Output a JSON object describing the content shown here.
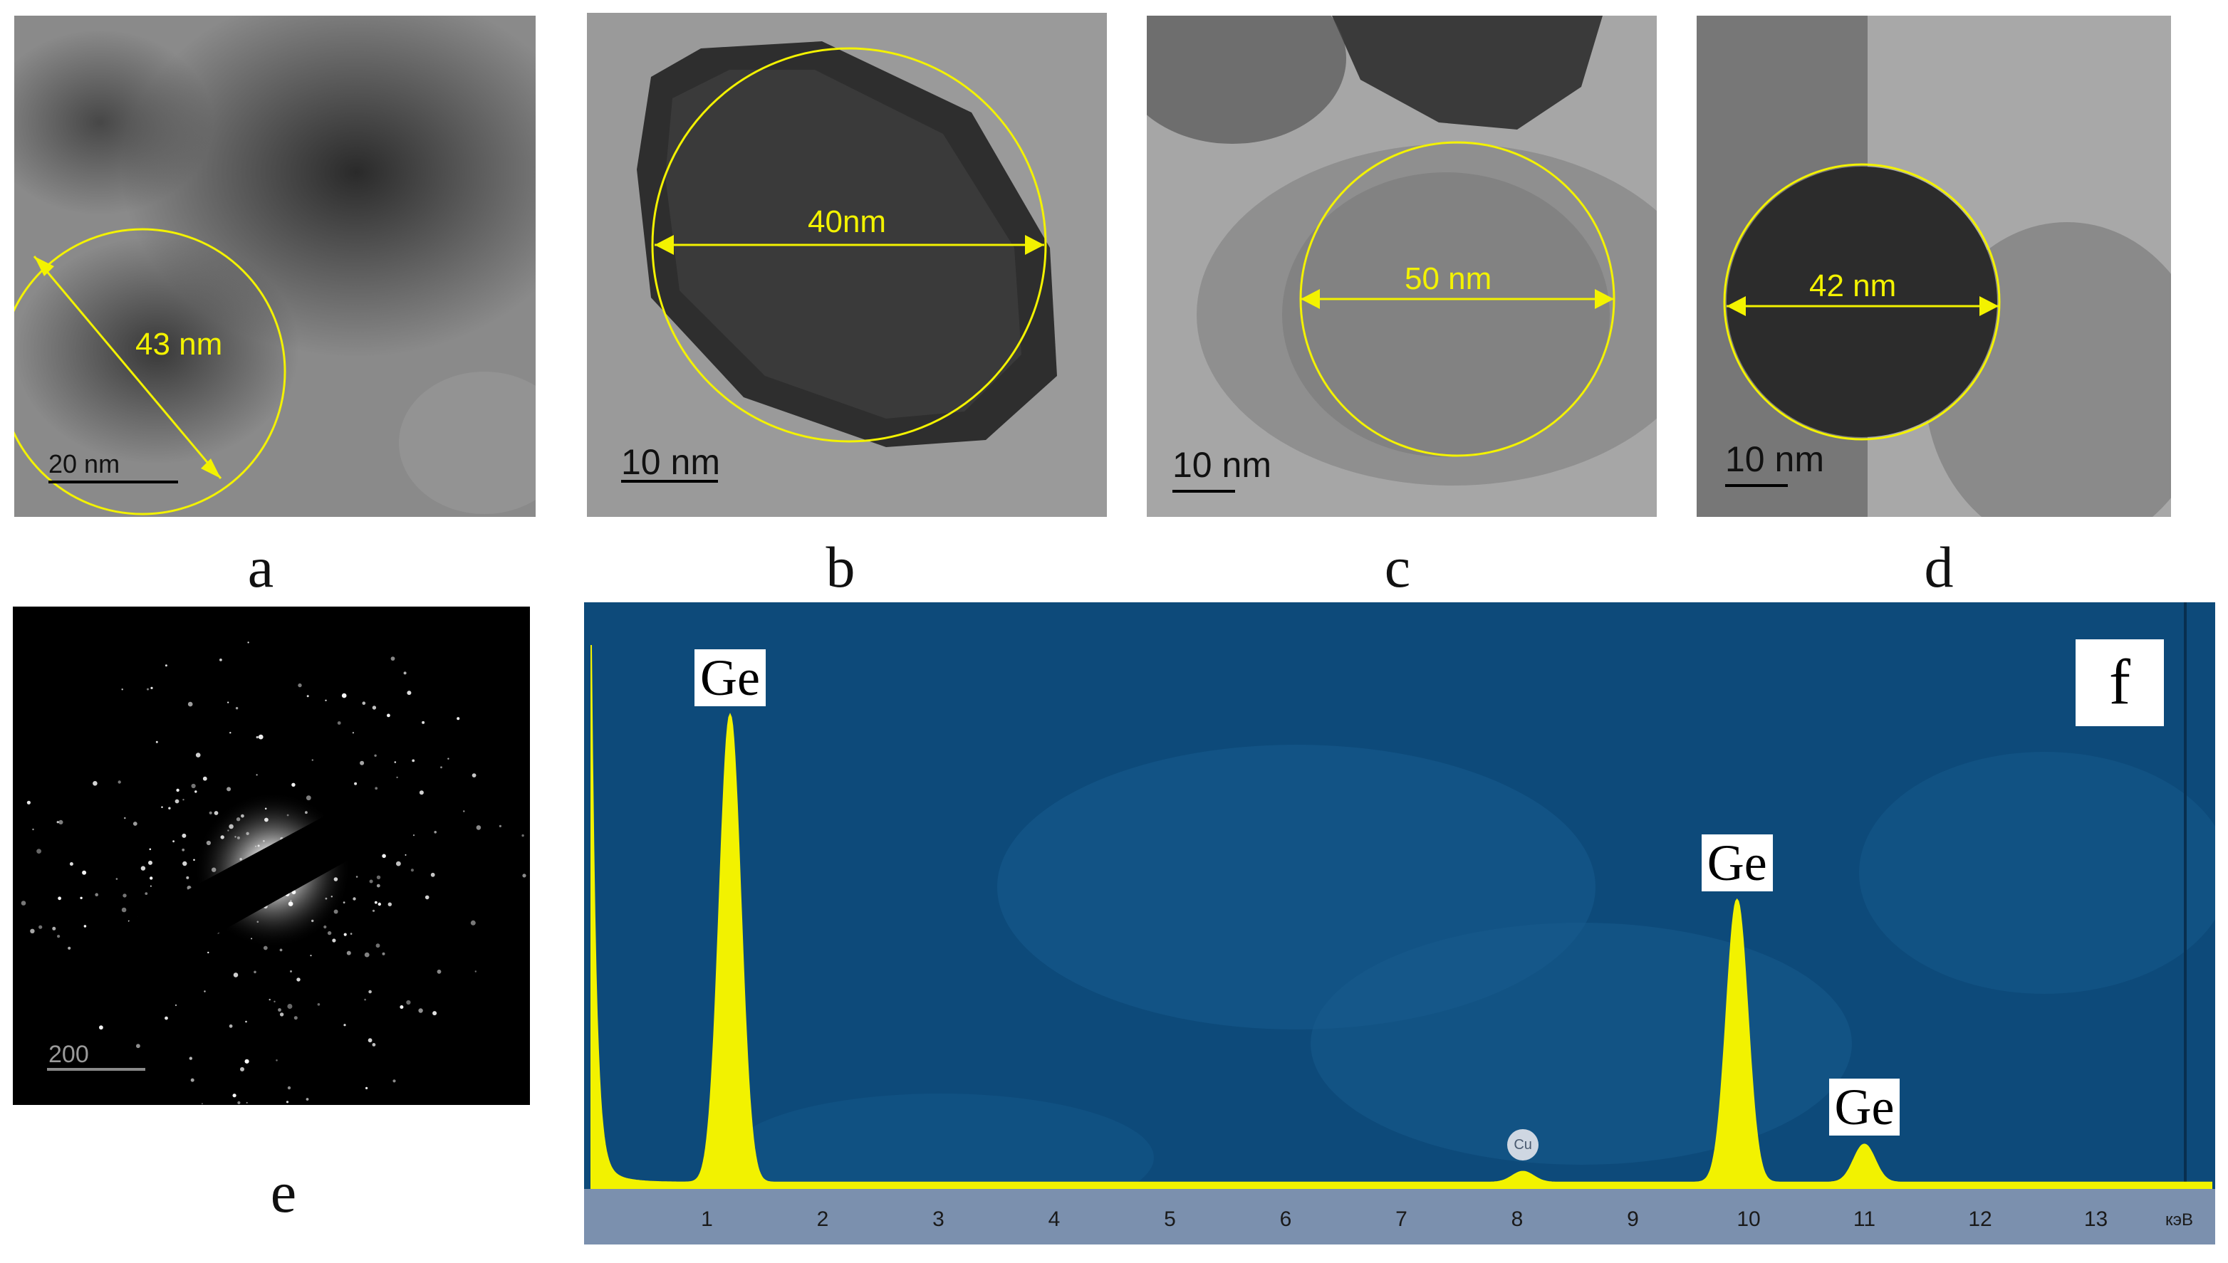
{
  "figure": {
    "panels": [
      {
        "letter": "a",
        "measurement": "43 nm",
        "scale_bar": "20 nm"
      },
      {
        "letter": "b",
        "measurement": "40nm",
        "scale_bar": "10 nm"
      },
      {
        "letter": "c",
        "measurement": "50 nm",
        "scale_bar": "10 nm"
      },
      {
        "letter": "d",
        "measurement": "42 nm",
        "scale_bar": "10 nm"
      },
      {
        "letter": "e",
        "scale_bar": "200"
      },
      {
        "letter": "f"
      }
    ]
  },
  "chart_data": {
    "type": "line",
    "title": "",
    "xlabel": "кэВ",
    "ylabel": "",
    "xlim": [
      0,
      14
    ],
    "x_ticks": [
      "1",
      "2",
      "3",
      "4",
      "5",
      "6",
      "7",
      "8",
      "9",
      "10",
      "11",
      "12",
      "13"
    ],
    "peaks": [
      {
        "element": "Ge",
        "energy": 1.2,
        "relative_intensity": 0.86
      },
      {
        "element": "Cu",
        "energy": 8.05,
        "relative_intensity": 0.02
      },
      {
        "element": "Ge",
        "energy": 9.9,
        "relative_intensity": 0.52
      },
      {
        "element": "Ge",
        "energy": 11.0,
        "relative_intensity": 0.07
      }
    ],
    "colors": {
      "spectrum": "#f2f200",
      "background": "#0d4a7a"
    }
  }
}
